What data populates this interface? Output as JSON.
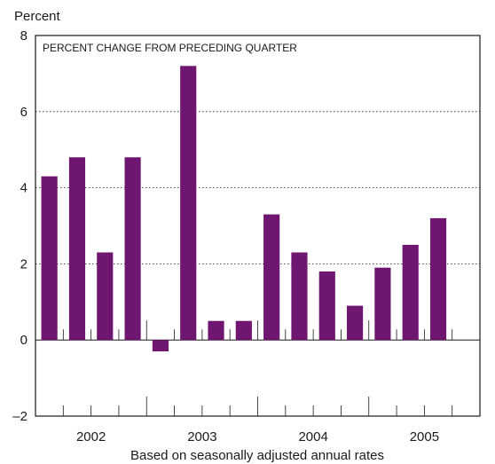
{
  "chart_data": {
    "type": "bar",
    "title": "PERCENT CHANGE FROM PRECEDING QUARTER",
    "ylabel": "Percent",
    "xlabel": "Based on seasonally adjusted annual rates",
    "ylim": [
      -2,
      8
    ],
    "yticks": [
      -2,
      0,
      2,
      4,
      6,
      8
    ],
    "ytick_labels": [
      "–2",
      "0",
      "2",
      "4",
      "6",
      "8"
    ],
    "grid": true,
    "bar_color": "#6e1670",
    "year_labels": [
      "2002",
      "2003",
      "2004",
      "2005"
    ],
    "categories": [
      "2002 Q1",
      "2002 Q2",
      "2002 Q3",
      "2002 Q4",
      "2003 Q1",
      "2003 Q2",
      "2003 Q3",
      "2003 Q4",
      "2004 Q1",
      "2004 Q2",
      "2004 Q3",
      "2004 Q4",
      "2005 Q1",
      "2005 Q2",
      "2005 Q3"
    ],
    "values": [
      4.3,
      4.8,
      2.3,
      4.8,
      -0.3,
      7.2,
      0.5,
      0.5,
      3.3,
      2.3,
      1.8,
      0.9,
      1.9,
      2.5,
      3.2
    ]
  }
}
